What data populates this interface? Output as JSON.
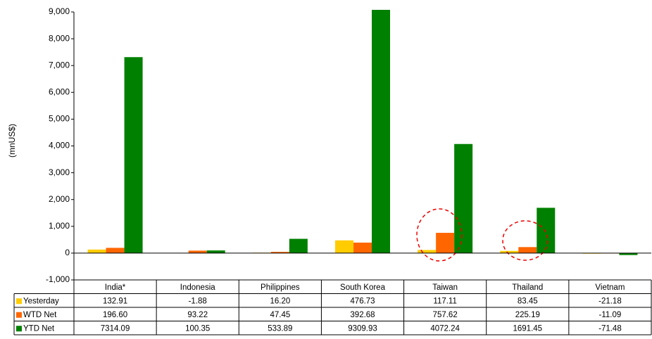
{
  "chart_data": {
    "type": "bar",
    "y_label": "(mnUS$)",
    "categories": [
      "India*",
      "Indonesia",
      "Philippines",
      "South Korea",
      "Taiwan",
      "Thailand",
      "Vietnam"
    ],
    "series": [
      {
        "name": "Yesterday",
        "color": "#ffcc00",
        "values": [
          132.91,
          -1.88,
          16.2,
          476.73,
          117.11,
          83.45,
          -21.18
        ],
        "value_labels": [
          "132.91",
          "-1.88",
          "16.20",
          "476.73",
          "117.11",
          "83.45",
          "-21.18"
        ]
      },
      {
        "name": "WTD Net",
        "color": "#ff6600",
        "values": [
          196.6,
          93.22,
          47.45,
          392.68,
          757.62,
          225.19,
          -11.09
        ],
        "value_labels": [
          "196.60",
          "93.22",
          "47.45",
          "392.68",
          "757.62",
          "225.19",
          "-11.09"
        ]
      },
      {
        "name": "YTD Net",
        "color": "#008000",
        "values": [
          7314.09,
          100.35,
          533.89,
          9309.93,
          4072.24,
          1691.45,
          -71.48
        ],
        "value_labels": [
          "7314.09",
          "100.35",
          "533.89",
          "9309.93",
          "4072.24",
          "1691.45",
          "-71.48"
        ]
      }
    ],
    "ylim": [
      -1000,
      9000
    ],
    "yticks": [
      {
        "value": -1000,
        "label": "-1,000"
      },
      0,
      {
        "value": 1000,
        "label": "1,000"
      },
      {
        "value": 2000,
        "label": "2,000"
      },
      {
        "value": 3000,
        "label": "3,000"
      },
      {
        "value": 4000,
        "label": "4,000"
      },
      {
        "value": 5000,
        "label": "5,000"
      },
      {
        "value": 6000,
        "label": "6,000"
      },
      {
        "value": 7000,
        "label": "7,000"
      },
      {
        "value": 8000,
        "label": "8,000"
      },
      {
        "value": 9000,
        "label": "9,000"
      }
    ]
  }
}
